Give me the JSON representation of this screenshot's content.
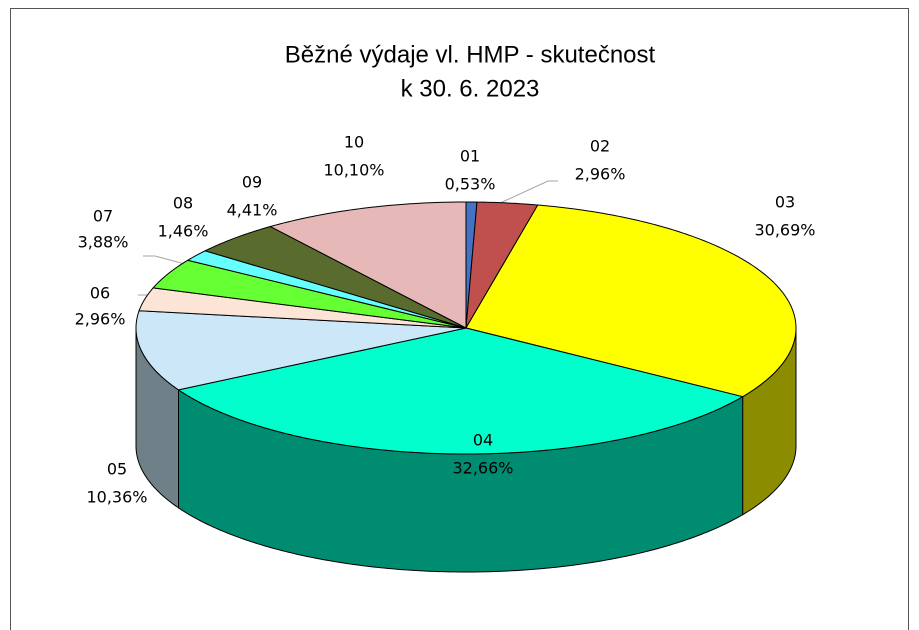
{
  "chart_data": {
    "type": "pie3d",
    "title": [
      "Běžné výdaje vl. HMP - skutečnost",
      "k 30. 6. 2023"
    ],
    "categories": [
      "01",
      "02",
      "03",
      "04",
      "05",
      "06",
      "07",
      "08",
      "09",
      "10"
    ],
    "values": [
      0.53,
      2.96,
      30.69,
      32.66,
      10.36,
      2.96,
      3.88,
      1.46,
      4.41,
      10.1
    ],
    "value_labels": [
      "0,53%",
      "2,96%",
      "30,69%",
      "32,66%",
      "10,36%",
      "2,96%",
      "3,88%",
      "1,46%",
      "4,41%",
      "10,10%"
    ],
    "colors": [
      "#4472c4",
      "#c0504d",
      "#ffff00",
      "#00ffcc",
      "#cce8f8",
      "#fce4d6",
      "#66ff33",
      "#66ffff",
      "#5a6b2e",
      "#e6b8b7"
    ]
  }
}
